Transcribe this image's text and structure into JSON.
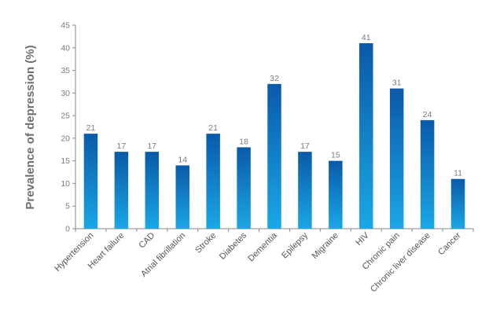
{
  "chart_data": {
    "type": "bar",
    "title": "",
    "xlabel": "",
    "ylabel": "Prevalence of depression (%)",
    "categories": [
      "Hypertension",
      "Heart failure",
      "CAD",
      "Atrial fibrillation",
      "Stroke",
      "Diabetes",
      "Dementia",
      "Epilepsy",
      "Migraine",
      "HIV",
      "Chronic pain",
      "Chronic liver disease",
      "Cancer"
    ],
    "values": [
      21,
      17,
      17,
      14,
      21,
      18,
      32,
      17,
      15,
      41,
      31,
      24,
      11
    ],
    "data_labels": [
      "21",
      "17",
      "17",
      "14",
      "21",
      "18",
      "32",
      "17",
      "15",
      "41",
      "31",
      "24",
      "11"
    ],
    "ylim": [
      0,
      45
    ],
    "yticks": [
      0,
      5,
      10,
      15,
      20,
      25,
      30,
      35,
      40,
      45
    ],
    "ytick_labels": [
      "0",
      "5",
      "10",
      "15",
      "20",
      "25",
      "30",
      "35",
      "40",
      "45"
    ],
    "grid": false,
    "legend": "none",
    "colors": {
      "bar_top": "#0a5aa8",
      "bar_bottom": "#1aa7e6",
      "axis": "#8a8a8a"
    }
  }
}
